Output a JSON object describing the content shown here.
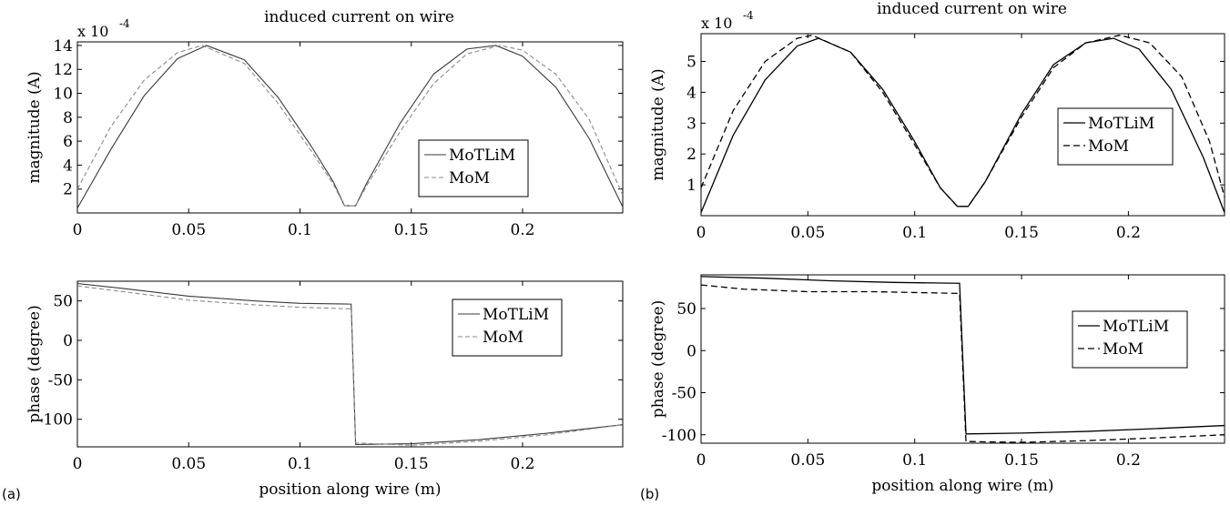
{
  "panel_labels": [
    "(a)",
    "(b)"
  ],
  "chart_data": [
    {
      "type": "line",
      "panel": "(a)",
      "title": "induced current on wire",
      "xlabel": "",
      "ylabel": "magnitude (A)",
      "scale_label": "x 10",
      "scale_exponent": "-4",
      "xlim": [
        0,
        0.245
      ],
      "ylim": [
        0,
        14.3
      ],
      "xticks": [
        0,
        0.05,
        0.1,
        0.15,
        0.2
      ],
      "xtick_labels": [
        "0",
        "0.05",
        "0.1",
        "0.15",
        "0.2"
      ],
      "yticks": [
        2,
        4,
        6,
        8,
        10,
        12,
        14
      ],
      "ytick_labels": [
        "2",
        "4",
        "6",
        "8",
        "10",
        "12",
        "14"
      ],
      "legend_position": "right",
      "series_colors": [
        "#3a3a3a",
        "#8a8a8a"
      ],
      "series": [
        {
          "name": "MoTLiM",
          "style": "solid",
          "x": [
            0,
            0.015,
            0.03,
            0.045,
            0.058,
            0.075,
            0.09,
            0.105,
            0.115,
            0.12,
            0.125,
            0.13,
            0.145,
            0.16,
            0.175,
            0.188,
            0.2,
            0.215,
            0.23,
            0.245
          ],
          "y": [
            0.4,
            5.3,
            9.8,
            12.9,
            14.0,
            12.8,
            9.7,
            5.6,
            2.6,
            0.6,
            0.6,
            2.5,
            7.5,
            11.6,
            13.7,
            14.0,
            13.1,
            10.5,
            6.2,
            0.5
          ]
        },
        {
          "name": "MoM",
          "style": "dashed",
          "x": [
            0,
            0.015,
            0.03,
            0.045,
            0.056,
            0.075,
            0.09,
            0.105,
            0.115,
            0.12,
            0.125,
            0.13,
            0.145,
            0.16,
            0.175,
            0.19,
            0.2,
            0.215,
            0.23,
            0.245
          ],
          "y": [
            2.0,
            7.2,
            11.1,
            13.4,
            14.0,
            12.5,
            9.2,
            5.2,
            2.4,
            0.6,
            0.6,
            2.3,
            6.8,
            10.8,
            13.3,
            14.0,
            13.6,
            11.6,
            7.8,
            1.5
          ]
        }
      ]
    },
    {
      "type": "line",
      "panel": "(a)",
      "title": "",
      "xlabel": "position along wire (m)",
      "ylabel": "phase (degree)",
      "xlim": [
        0,
        0.245
      ],
      "ylim": [
        -135,
        75
      ],
      "xticks": [
        0,
        0.05,
        0.1,
        0.15,
        0.2
      ],
      "xtick_labels": [
        "0",
        "0.05",
        "0.1",
        "0.15",
        "0.2"
      ],
      "yticks": [
        50,
        0,
        -50,
        -100
      ],
      "ytick_labels": [
        "50",
        "0",
        "-50",
        "-100"
      ],
      "legend_position": "right",
      "series_colors": [
        "#3a3a3a",
        "#8a8a8a"
      ],
      "series": [
        {
          "name": "MoTLiM",
          "style": "solid",
          "x": [
            0,
            0.02,
            0.05,
            0.08,
            0.1,
            0.122,
            0.123,
            0.125,
            0.15,
            0.18,
            0.21,
            0.245
          ],
          "y": [
            72,
            66,
            56,
            50,
            47,
            46,
            46,
            -132,
            -131,
            -126,
            -118,
            -107
          ]
        },
        {
          "name": "MoM",
          "style": "dashed",
          "x": [
            0,
            0.02,
            0.05,
            0.08,
            0.1,
            0.122,
            0.123,
            0.125,
            0.15,
            0.18,
            0.21,
            0.245
          ],
          "y": [
            69,
            62,
            51,
            45,
            42,
            40,
            40,
            -130,
            -133,
            -128,
            -120,
            -107
          ]
        }
      ]
    },
    {
      "type": "line",
      "panel": "(b)",
      "title": "induced current on wire",
      "xlabel": "",
      "ylabel": "magnitude (A)",
      "scale_label": "x 10",
      "scale_exponent": "-4",
      "xlim": [
        0,
        0.245
      ],
      "ylim": [
        0,
        5.9
      ],
      "xticks": [
        0,
        0.05,
        0.1,
        0.15,
        0.2
      ],
      "xtick_labels": [
        "0",
        "0.05",
        "0.1",
        "0.15",
        "0.2"
      ],
      "yticks": [
        1,
        2,
        3,
        4,
        5
      ],
      "ytick_labels": [
        "1",
        "2",
        "3",
        "4",
        "5"
      ],
      "legend_position": "right",
      "series_colors": [
        "#000000",
        "#000000"
      ],
      "series": [
        {
          "name": "MoTLiM",
          "style": "solid",
          "x": [
            0,
            0.015,
            0.03,
            0.045,
            0.055,
            0.07,
            0.085,
            0.1,
            0.112,
            0.12,
            0.125,
            0.133,
            0.15,
            0.165,
            0.18,
            0.193,
            0.205,
            0.22,
            0.235,
            0.245
          ],
          "y": [
            0.1,
            2.6,
            4.4,
            5.5,
            5.75,
            5.3,
            4.1,
            2.4,
            0.9,
            0.3,
            0.3,
            1.1,
            3.3,
            4.9,
            5.6,
            5.75,
            5.4,
            4.1,
            1.9,
            0.1
          ]
        },
        {
          "name": "MoM",
          "style": "dashed",
          "x": [
            0,
            0.015,
            0.03,
            0.045,
            0.052,
            0.07,
            0.085,
            0.1,
            0.112,
            0.12,
            0.125,
            0.133,
            0.15,
            0.165,
            0.18,
            0.196,
            0.21,
            0.225,
            0.238,
            0.245
          ],
          "y": [
            0.9,
            3.4,
            5.0,
            5.75,
            5.85,
            5.3,
            4.0,
            2.3,
            0.9,
            0.3,
            0.3,
            1.1,
            3.2,
            4.8,
            5.6,
            5.85,
            5.6,
            4.5,
            2.4,
            0.6
          ]
        }
      ]
    },
    {
      "type": "line",
      "panel": "(b)",
      "title": "",
      "xlabel": "position along wire (m)",
      "ylabel": "phase (degree)",
      "xlim": [
        0,
        0.245
      ],
      "ylim": [
        -110,
        90
      ],
      "xticks": [
        0,
        0.05,
        0.1,
        0.15,
        0.2
      ],
      "xtick_labels": [
        "0",
        "0.05",
        "0.1",
        "0.15",
        "0.2"
      ],
      "yticks": [
        50,
        0,
        -50,
        -100
      ],
      "ytick_labels": [
        "50",
        "0",
        "-50",
        "-100"
      ],
      "legend_position": "right",
      "series_colors": [
        "#000000",
        "#000000"
      ],
      "series": [
        {
          "name": "MoTLiM",
          "style": "solid",
          "x": [
            0,
            0.03,
            0.06,
            0.09,
            0.12,
            0.121,
            0.124,
            0.15,
            0.18,
            0.21,
            0.245
          ],
          "y": [
            88,
            86,
            83,
            81,
            80,
            80,
            -99,
            -98,
            -96,
            -93,
            -89
          ]
        },
        {
          "name": "MoM",
          "style": "dashed",
          "x": [
            0,
            0.02,
            0.05,
            0.08,
            0.1,
            0.12,
            0.121,
            0.124,
            0.15,
            0.18,
            0.21,
            0.245
          ],
          "y": [
            78,
            73,
            70,
            70,
            69,
            68,
            68,
            -108,
            -109,
            -107,
            -104,
            -100
          ]
        }
      ]
    }
  ]
}
